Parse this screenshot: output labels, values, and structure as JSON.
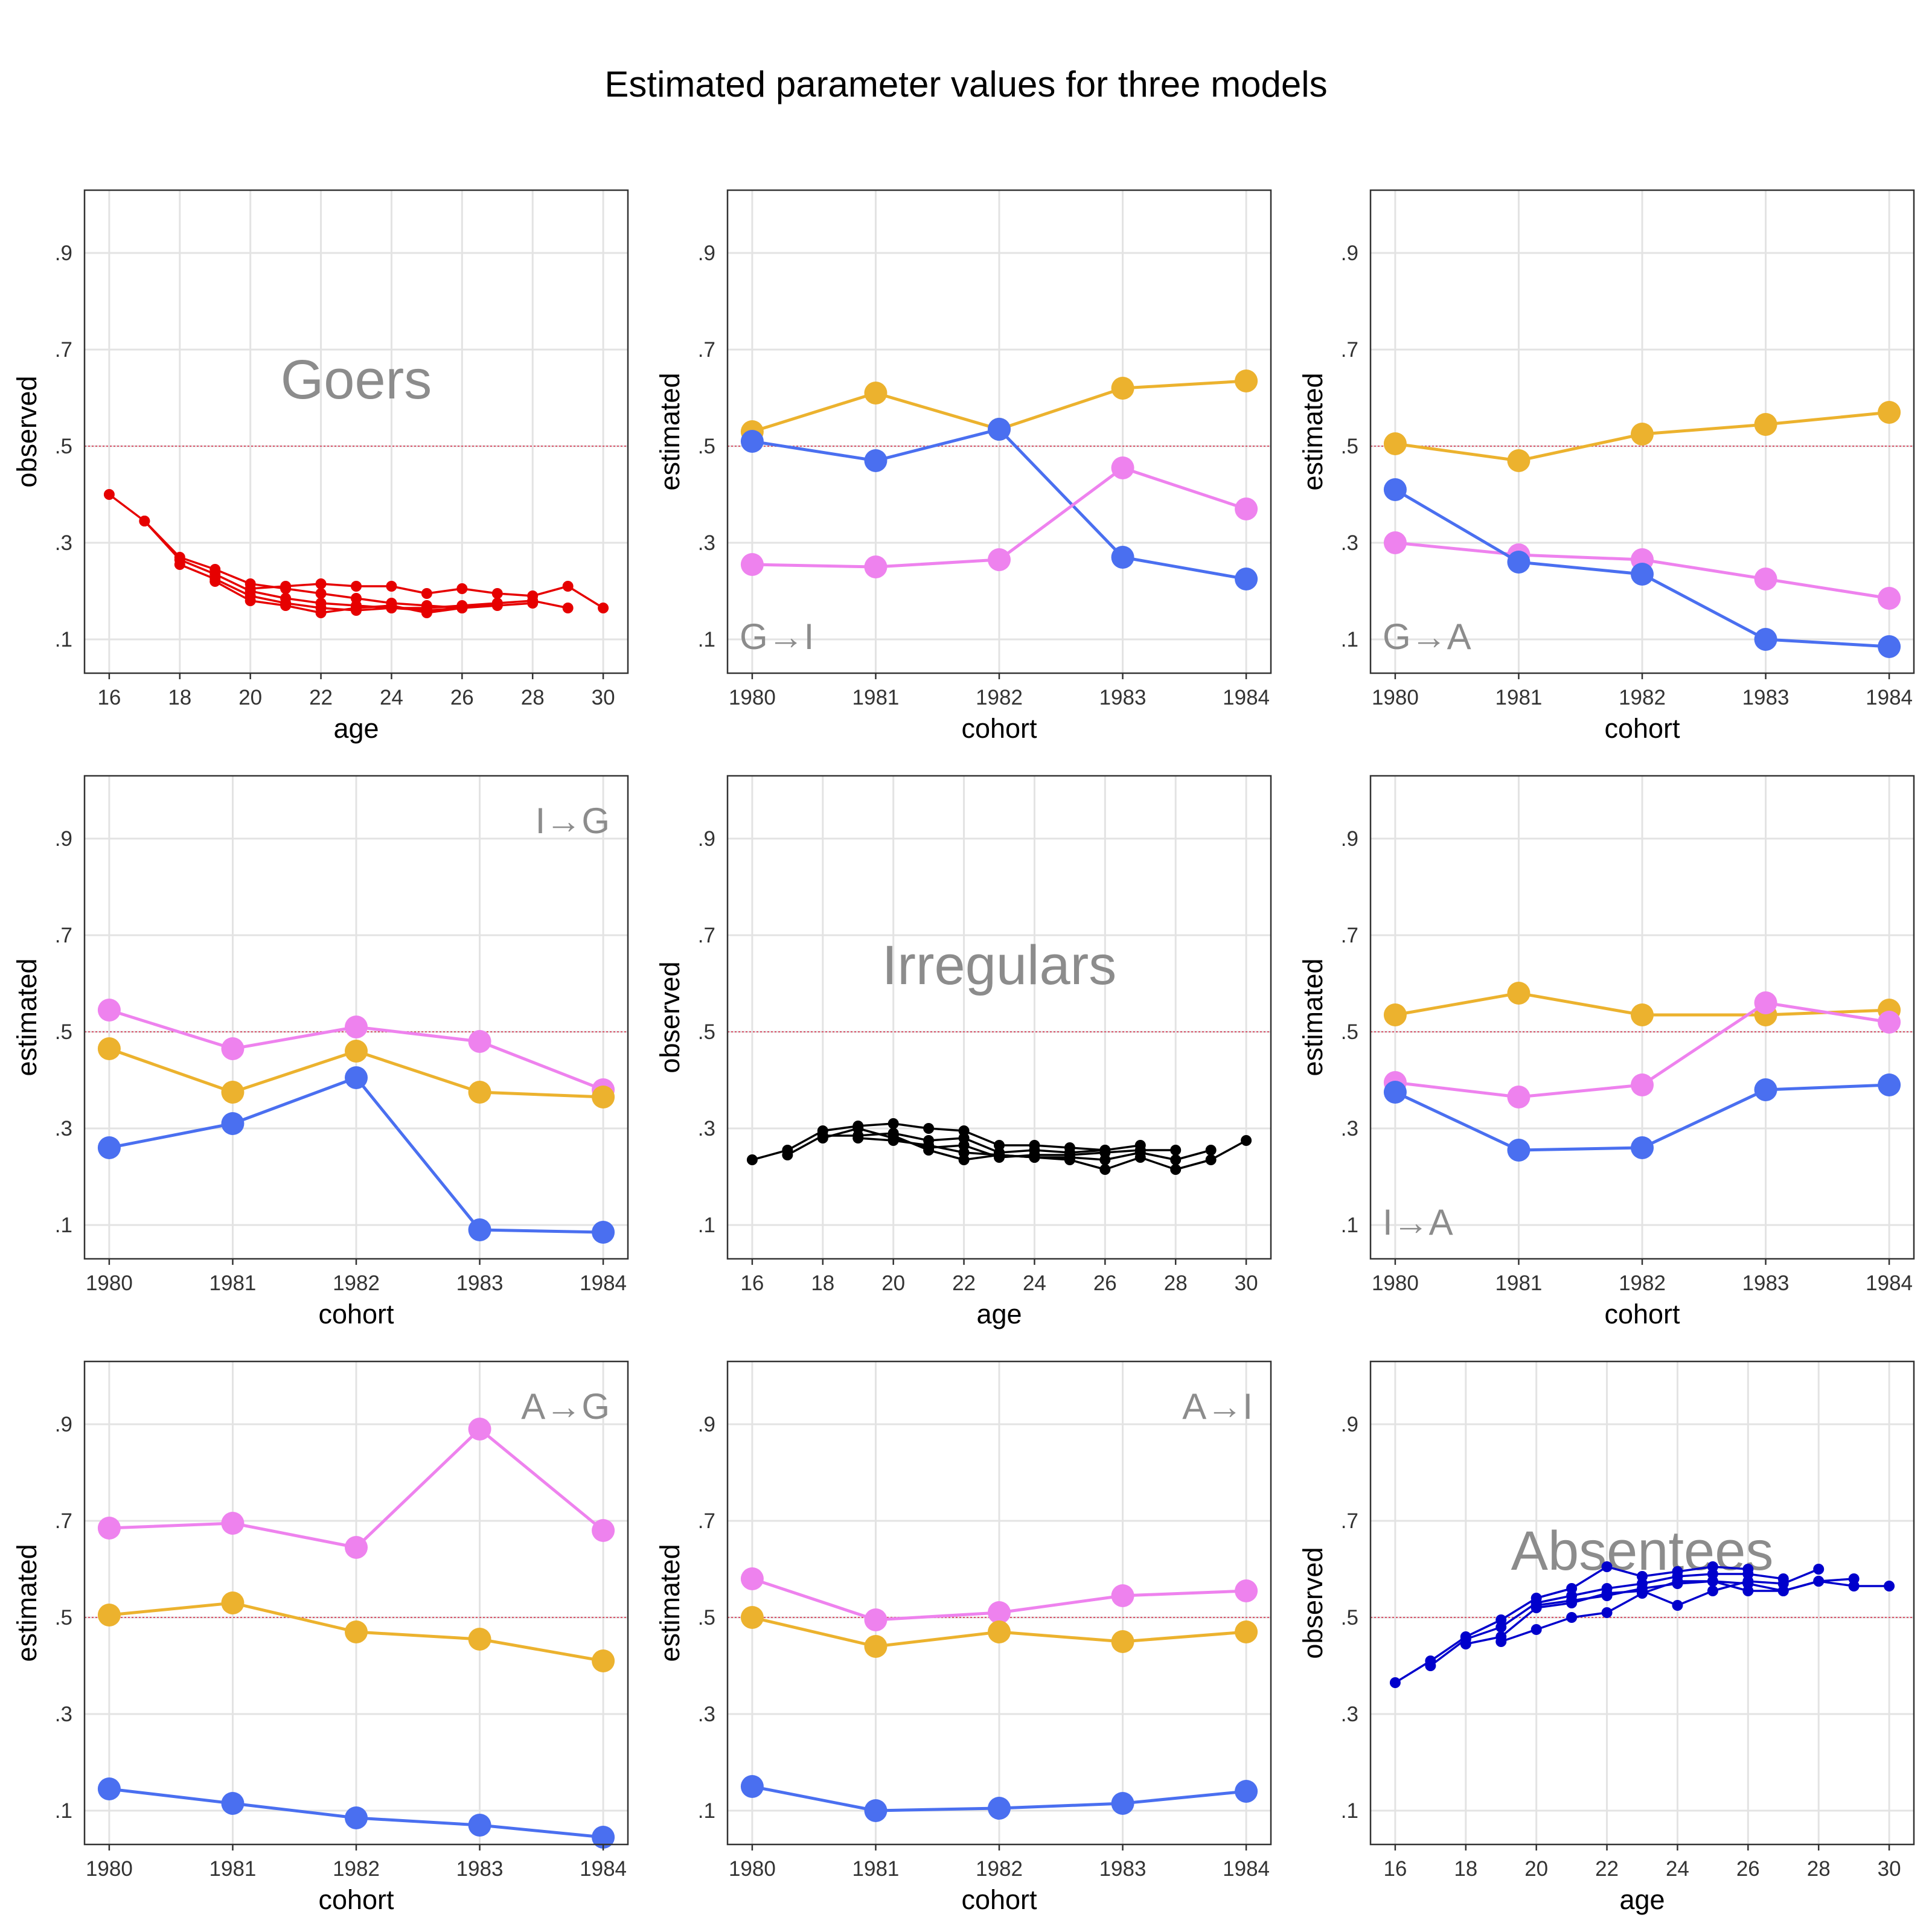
{
  "title": "Estimated parameter values for three models",
  "colors": {
    "goers": "#e60000",
    "irregulars": "#000000",
    "absentees": "#0000cc",
    "blue": "#4a6ff0",
    "orange": "#ecb22e",
    "violet": "#ee82ee",
    "reference_line": "#d9546a",
    "grid": "#e3e3e3",
    "watermark": "#8c8c8c"
  },
  "chart_data": [
    {
      "type": "line",
      "panel": "goers",
      "label": "Goers",
      "label_style": "big-center",
      "xlabel": "age",
      "ylabel": "observed",
      "xlim": [
        15.3,
        30.7
      ],
      "ylim": [
        0.03,
        1.03
      ],
      "xticks": [
        "16",
        "18",
        "20",
        "22",
        "24",
        "26",
        "28",
        "30"
      ],
      "yticks": [
        ".1",
        ".3",
        ".5",
        ".7",
        ".9"
      ],
      "reference_line": 0.5,
      "grid": true,
      "color": "goers",
      "marker": "small",
      "series": [
        {
          "x": [
            16,
            17,
            18,
            19,
            20,
            21,
            22,
            23,
            24,
            25,
            26
          ],
          "values": [
            0.4,
            0.345,
            0.27,
            0.245,
            0.215,
            0.205,
            0.195,
            0.185,
            0.175,
            0.17,
            0.165
          ]
        },
        {
          "x": [
            17,
            18,
            19,
            20,
            21,
            22,
            23,
            24,
            25,
            26,
            27
          ],
          "values": [
            0.345,
            0.265,
            0.235,
            0.2,
            0.185,
            0.175,
            0.17,
            0.165,
            0.165,
            0.17,
            0.175
          ]
        },
        {
          "x": [
            18,
            19,
            20,
            21,
            22,
            23,
            24,
            25,
            26,
            27,
            28
          ],
          "values": [
            0.255,
            0.225,
            0.19,
            0.175,
            0.165,
            0.16,
            0.165,
            0.16,
            0.165,
            0.17,
            0.175
          ]
        },
        {
          "x": [
            19,
            20,
            21,
            22,
            23,
            24,
            25,
            26,
            27,
            28,
            29
          ],
          "values": [
            0.22,
            0.18,
            0.17,
            0.155,
            0.165,
            0.17,
            0.155,
            0.165,
            0.175,
            0.18,
            0.165
          ]
        },
        {
          "x": [
            20,
            21,
            22,
            23,
            24,
            25,
            26,
            27,
            28,
            29,
            30
          ],
          "values": [
            0.205,
            0.21,
            0.215,
            0.21,
            0.21,
            0.195,
            0.205,
            0.195,
            0.19,
            0.21,
            0.165
          ]
        }
      ]
    },
    {
      "type": "line",
      "panel": "G→I",
      "label": "G→I",
      "label_style": "bottom-left",
      "xlabel": "cohort",
      "ylabel": "estimated",
      "xlim": [
        1979.8,
        1984.2
      ],
      "ylim": [
        0.03,
        1.03
      ],
      "categories": [
        "1980",
        "1981",
        "1982",
        "1983",
        "1984"
      ],
      "yticks": [
        ".1",
        ".3",
        ".5",
        ".7",
        ".9"
      ],
      "reference_line": 0.5,
      "grid": true,
      "marker": "large",
      "series": [
        {
          "color": "orange",
          "values": [
            0.53,
            0.61,
            0.535,
            0.62,
            0.635
          ]
        },
        {
          "color": "blue",
          "values": [
            0.51,
            0.47,
            0.535,
            0.27,
            0.225
          ]
        },
        {
          "color": "violet",
          "values": [
            0.255,
            0.25,
            0.265,
            0.455,
            0.37
          ]
        }
      ]
    },
    {
      "type": "line",
      "panel": "G→A",
      "label": "G→A",
      "label_style": "bottom-left",
      "xlabel": "cohort",
      "ylabel": "estimated",
      "xlim": [
        1979.8,
        1984.2
      ],
      "ylim": [
        0.03,
        1.03
      ],
      "categories": [
        "1980",
        "1981",
        "1982",
        "1983",
        "1984"
      ],
      "yticks": [
        ".1",
        ".3",
        ".5",
        ".7",
        ".9"
      ],
      "reference_line": 0.5,
      "grid": true,
      "marker": "large",
      "series": [
        {
          "color": "orange",
          "values": [
            0.505,
            0.47,
            0.525,
            0.545,
            0.57
          ]
        },
        {
          "color": "violet",
          "values": [
            0.3,
            0.275,
            0.265,
            0.225,
            0.185
          ]
        },
        {
          "color": "blue",
          "values": [
            0.41,
            0.26,
            0.235,
            0.1,
            0.085
          ]
        }
      ]
    },
    {
      "type": "line",
      "panel": "I→G",
      "label": "I→G",
      "label_style": "top-right",
      "xlabel": "cohort",
      "ylabel": "estimated",
      "xlim": [
        1979.8,
        1984.2
      ],
      "ylim": [
        0.03,
        1.03
      ],
      "categories": [
        "1980",
        "1981",
        "1982",
        "1983",
        "1984"
      ],
      "yticks": [
        ".1",
        ".3",
        ".5",
        ".7",
        ".9"
      ],
      "reference_line": 0.5,
      "grid": true,
      "marker": "large",
      "series": [
        {
          "color": "violet",
          "values": [
            0.545,
            0.465,
            0.51,
            0.48,
            0.38
          ]
        },
        {
          "color": "orange",
          "values": [
            0.465,
            0.375,
            0.46,
            0.375,
            0.365
          ]
        },
        {
          "color": "blue",
          "values": [
            0.26,
            0.31,
            0.405,
            0.09,
            0.085
          ]
        }
      ]
    },
    {
      "type": "line",
      "panel": "irregulars",
      "label": "Irregulars",
      "label_style": "big-center",
      "xlabel": "age",
      "ylabel": "observed",
      "xlim": [
        15.3,
        30.7
      ],
      "ylim": [
        0.03,
        1.03
      ],
      "xticks": [
        "16",
        "18",
        "20",
        "22",
        "24",
        "26",
        "28",
        "30"
      ],
      "yticks": [
        ".1",
        ".3",
        ".5",
        ".7",
        ".9"
      ],
      "reference_line": 0.5,
      "grid": true,
      "color": "irregulars",
      "marker": "small",
      "series": [
        {
          "x": [
            16,
            17,
            18,
            19,
            20,
            21,
            22,
            23,
            24,
            25,
            26
          ],
          "values": [
            0.235,
            0.255,
            0.295,
            0.305,
            0.31,
            0.3,
            0.295,
            0.265,
            0.265,
            0.26,
            0.255
          ]
        },
        {
          "x": [
            17,
            18,
            19,
            20,
            21,
            22,
            23,
            24,
            25,
            26,
            27
          ],
          "values": [
            0.245,
            0.285,
            0.285,
            0.29,
            0.275,
            0.28,
            0.25,
            0.255,
            0.25,
            0.255,
            0.265
          ]
        },
        {
          "x": [
            18,
            19,
            20,
            21,
            22,
            23,
            24,
            25,
            26,
            27,
            28
          ],
          "values": [
            0.28,
            0.3,
            0.28,
            0.26,
            0.265,
            0.24,
            0.245,
            0.245,
            0.25,
            0.255,
            0.255
          ]
        },
        {
          "x": [
            19,
            20,
            21,
            22,
            23,
            24,
            25,
            26,
            27,
            28,
            29
          ],
          "values": [
            0.28,
            0.275,
            0.265,
            0.25,
            0.245,
            0.24,
            0.24,
            0.235,
            0.25,
            0.235,
            0.255
          ]
        },
        {
          "x": [
            20,
            21,
            22,
            23,
            24,
            25,
            26,
            27,
            28,
            29,
            30
          ],
          "values": [
            0.285,
            0.255,
            0.235,
            0.245,
            0.24,
            0.235,
            0.215,
            0.24,
            0.215,
            0.235,
            0.275
          ]
        }
      ]
    },
    {
      "type": "line",
      "panel": "I→A",
      "label": "I→A",
      "label_style": "bottom-left",
      "xlabel": "cohort",
      "ylabel": "estimated",
      "xlim": [
        1979.8,
        1984.2
      ],
      "ylim": [
        0.03,
        1.03
      ],
      "categories": [
        "1980",
        "1981",
        "1982",
        "1983",
        "1984"
      ],
      "yticks": [
        ".1",
        ".3",
        ".5",
        ".7",
        ".9"
      ],
      "reference_line": 0.5,
      "grid": true,
      "marker": "large",
      "series": [
        {
          "color": "orange",
          "values": [
            0.535,
            0.58,
            0.535,
            0.535,
            0.545
          ]
        },
        {
          "color": "violet",
          "values": [
            0.395,
            0.365,
            0.39,
            0.56,
            0.52
          ]
        },
        {
          "color": "blue",
          "values": [
            0.375,
            0.255,
            0.26,
            0.38,
            0.39
          ]
        }
      ]
    },
    {
      "type": "line",
      "panel": "A→G",
      "label": "A→G",
      "label_style": "top-right",
      "xlabel": "cohort",
      "ylabel": "estimated",
      "xlim": [
        1979.8,
        1984.2
      ],
      "ylim": [
        0.03,
        1.03
      ],
      "categories": [
        "1980",
        "1981",
        "1982",
        "1983",
        "1984"
      ],
      "yticks": [
        ".1",
        ".3",
        ".5",
        ".7",
        ".9"
      ],
      "reference_line": 0.5,
      "grid": true,
      "marker": "large",
      "series": [
        {
          "color": "violet",
          "values": [
            0.685,
            0.695,
            0.645,
            0.89,
            0.68
          ]
        },
        {
          "color": "orange",
          "values": [
            0.505,
            0.53,
            0.47,
            0.455,
            0.41
          ]
        },
        {
          "color": "blue",
          "values": [
            0.145,
            0.115,
            0.085,
            0.07,
            0.045
          ]
        }
      ]
    },
    {
      "type": "line",
      "panel": "A→I",
      "label": "A→I",
      "label_style": "top-right",
      "xlabel": "cohort",
      "ylabel": "estimated",
      "xlim": [
        1979.8,
        1984.2
      ],
      "ylim": [
        0.03,
        1.03
      ],
      "categories": [
        "1980",
        "1981",
        "1982",
        "1983",
        "1984"
      ],
      "yticks": [
        ".1",
        ".3",
        ".5",
        ".7",
        ".9"
      ],
      "reference_line": 0.5,
      "grid": true,
      "marker": "large",
      "series": [
        {
          "color": "violet",
          "values": [
            0.58,
            0.495,
            0.51,
            0.545,
            0.555
          ]
        },
        {
          "color": "orange",
          "values": [
            0.5,
            0.44,
            0.47,
            0.45,
            0.47
          ]
        },
        {
          "color": "blue",
          "values": [
            0.15,
            0.1,
            0.105,
            0.115,
            0.14
          ]
        }
      ]
    },
    {
      "type": "line",
      "panel": "absentees",
      "label": "Absentees",
      "label_style": "big-center",
      "xlabel": "age",
      "ylabel": "observed",
      "xlim": [
        15.3,
        30.7
      ],
      "ylim": [
        0.03,
        1.03
      ],
      "xticks": [
        "16",
        "18",
        "20",
        "22",
        "24",
        "26",
        "28",
        "30"
      ],
      "yticks": [
        ".1",
        ".3",
        ".5",
        ".7",
        ".9"
      ],
      "reference_line": 0.5,
      "grid": true,
      "color": "absentees",
      "marker": "small",
      "series": [
        {
          "x": [
            16,
            17,
            18,
            19,
            20,
            21,
            22,
            23,
            24,
            25,
            26
          ],
          "values": [
            0.365,
            0.41,
            0.46,
            0.495,
            0.54,
            0.56,
            0.605,
            0.585,
            0.595,
            0.605,
            0.6
          ]
        },
        {
          "x": [
            17,
            18,
            19,
            20,
            21,
            22,
            23,
            24,
            25,
            26,
            27
          ],
          "values": [
            0.4,
            0.455,
            0.48,
            0.53,
            0.545,
            0.56,
            0.57,
            0.585,
            0.59,
            0.59,
            0.58
          ]
        },
        {
          "x": [
            18,
            19,
            20,
            21,
            22,
            23,
            24,
            25,
            26,
            27,
            28
          ],
          "values": [
            0.445,
            0.46,
            0.52,
            0.53,
            0.55,
            0.555,
            0.525,
            0.555,
            0.575,
            0.57,
            0.6
          ]
        },
        {
          "x": [
            19,
            20,
            21,
            22,
            23,
            24,
            25,
            26,
            27,
            28,
            29
          ],
          "values": [
            0.45,
            0.475,
            0.5,
            0.51,
            0.55,
            0.575,
            0.575,
            0.57,
            0.555,
            0.575,
            0.58
          ]
        },
        {
          "x": [
            20,
            21,
            22,
            23,
            24,
            25,
            26,
            27,
            28,
            29,
            30
          ],
          "values": [
            0.525,
            0.535,
            0.545,
            0.56,
            0.57,
            0.575,
            0.555,
            0.555,
            0.575,
            0.565,
            0.565
          ]
        }
      ]
    }
  ]
}
